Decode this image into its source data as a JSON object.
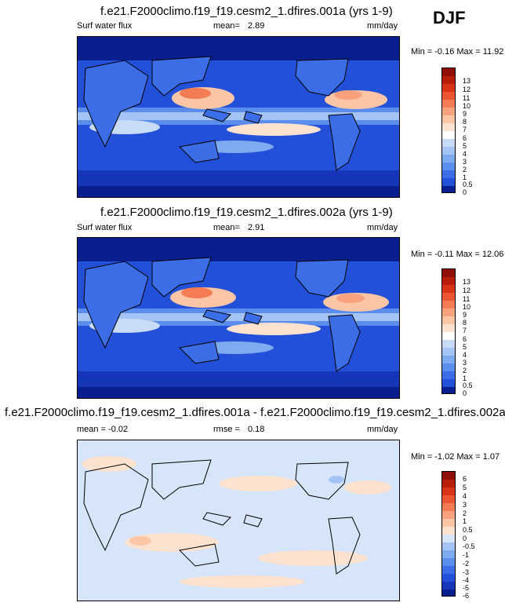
{
  "season": "DJF",
  "colors": {
    "abs": [
      "#0a1f8f",
      "#1536b8",
      "#2250d8",
      "#3b6ee6",
      "#5a8ded",
      "#7eaaf0",
      "#a3c4f4",
      "#c8dcf7",
      "#ffffff",
      "#fde3cf",
      "#fbc5a6",
      "#f8a27d",
      "#f47c55",
      "#ec5532",
      "#d93418",
      "#b81d0c",
      "#8f0f08"
    ],
    "diff": [
      "#0a1f8f",
      "#1536b8",
      "#2250d8",
      "#3b6ee6",
      "#5a8ded",
      "#7eaaf0",
      "#a3c4f4",
      "#d6e5f9",
      "#fde3cf",
      "#fbc5a6",
      "#f8a27d",
      "#f47c55",
      "#ec5532",
      "#d93418",
      "#b81d0c",
      "#8f0f08"
    ]
  },
  "panels": [
    {
      "title": "f.e21.F2000climo.f19_f19.cesm2_1.dfires.001a (yrs 1-9)",
      "left_label": "Surf water flux",
      "stat_label": "mean=",
      "stat_value": "2.89",
      "units": "mm/day",
      "minmax": "Min = -0.16 Max = 11.92",
      "ticks": [
        "13",
        "12",
        "11",
        "10",
        "9",
        "8",
        "7",
        "6",
        "5",
        "4",
        "3",
        "2",
        "1",
        "0.5",
        "0"
      ]
    },
    {
      "title": "f.e21.F2000climo.f19_f19.cesm2_1.dfires.002a (yrs 1-9)",
      "left_label": "Surf water flux",
      "stat_label": "mean=",
      "stat_value": "2.91",
      "units": "mm/day",
      "minmax": "Min = -0.11 Max = 12.06",
      "ticks": [
        "13",
        "12",
        "11",
        "10",
        "9",
        "8",
        "7",
        "6",
        "5",
        "4",
        "3",
        "2",
        "1",
        "0.5",
        "0"
      ]
    },
    {
      "title": "f.e21.F2000climo.f19_f19.cesm2_1.dfires.001a - f.e21.F2000climo.f19_f19.cesm2_1.dfires.002a",
      "left_label": "mean =  -0.02",
      "stat_label": "rmse =",
      "stat_value": "0.18",
      "units": "mm/day",
      "minmax": "Min = -1.02 Max =  1.07",
      "ticks": [
        "6",
        "5",
        "4",
        "3",
        "2",
        "1",
        "0.5",
        "0",
        "-0.5",
        "-1",
        "-2",
        "-3",
        "-4",
        "-5",
        "-6"
      ]
    }
  ]
}
